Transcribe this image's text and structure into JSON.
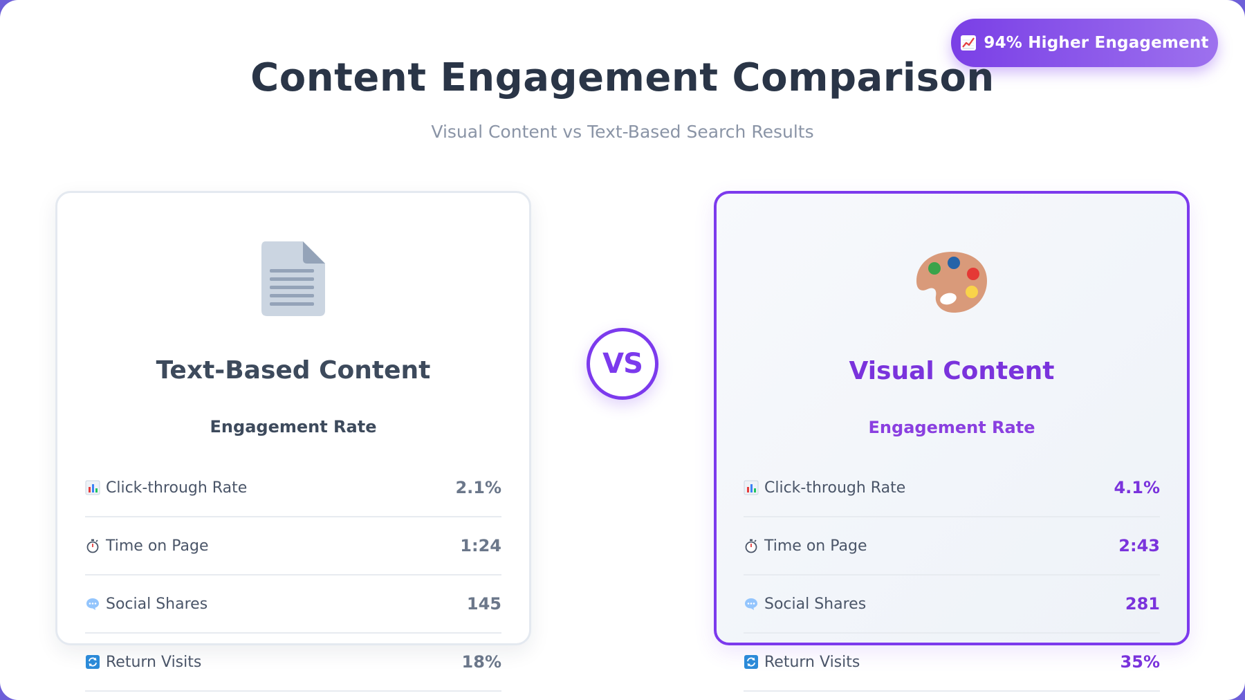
{
  "badge": {
    "icon": "chart-increasing-icon",
    "label": "94% Higher Engagement"
  },
  "header": {
    "title": "Content Engagement Comparison",
    "subtitle": "Visual Content vs Text-Based Search Results"
  },
  "vs_label": "VS",
  "cards": {
    "text": {
      "icon": "document-icon",
      "title": "Text-Based Content",
      "subtitle": "Engagement Rate",
      "metrics": [
        {
          "icon": "bar-chart-icon",
          "label": "Click-through Rate",
          "value": "2.1%"
        },
        {
          "icon": "stopwatch-icon",
          "label": "Time on Page",
          "value": "1:24"
        },
        {
          "icon": "speech-bubble-icon",
          "label": "Social Shares",
          "value": "145"
        },
        {
          "icon": "refresh-icon",
          "label": "Return Visits",
          "value": "18%"
        }
      ]
    },
    "visual": {
      "icon": "palette-icon",
      "title": "Visual Content",
      "subtitle": "Engagement Rate",
      "metrics": [
        {
          "icon": "bar-chart-icon",
          "label": "Click-through Rate",
          "value": "4.1%"
        },
        {
          "icon": "stopwatch-icon",
          "label": "Time on Page",
          "value": "2:43"
        },
        {
          "icon": "speech-bubble-icon",
          "label": "Social Shares",
          "value": "281"
        },
        {
          "icon": "refresh-icon",
          "label": "Return Visits",
          "value": "35%"
        }
      ]
    }
  },
  "colors": {
    "accent": "#7c3aed",
    "text_heading": "#2a3547",
    "text_muted": "#8a94a6",
    "card_border": "#e4e9f0"
  }
}
